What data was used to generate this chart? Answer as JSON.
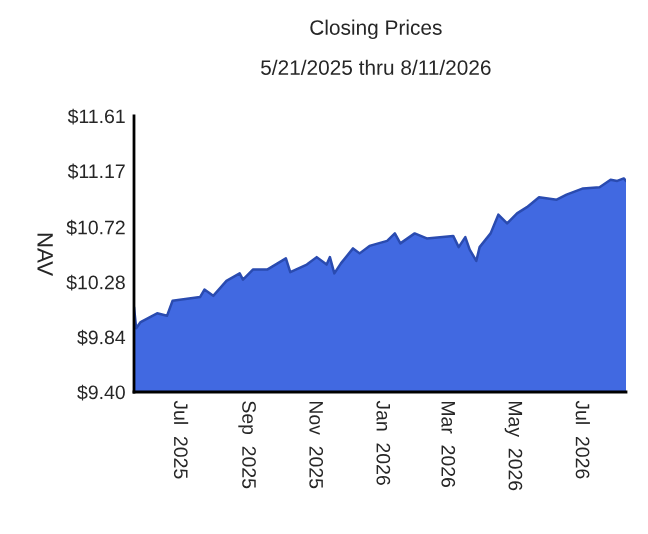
{
  "chart_data": {
    "type": "area",
    "title": "Closing Prices",
    "subtitle": "5/21/2025 thru 8/11/2026",
    "ylabel": "NAV",
    "x": [
      "2025-05-21",
      "2025-05-23",
      "2025-05-27",
      "2025-06-11",
      "2025-06-20",
      "2025-06-25",
      "2025-07-20",
      "2025-07-24",
      "2025-08-01",
      "2025-08-13",
      "2025-08-25",
      "2025-08-28",
      "2025-09-06",
      "2025-09-19",
      "2025-10-06",
      "2025-10-10",
      "2025-10-25",
      "2025-11-03",
      "2025-11-12",
      "2025-11-15",
      "2025-11-19",
      "2025-11-25",
      "2025-12-06",
      "2025-12-12",
      "2025-12-21",
      "2026-01-06",
      "2026-01-13",
      "2026-01-18",
      "2026-01-31",
      "2026-02-11",
      "2026-03-07",
      "2026-03-12",
      "2026-03-18",
      "2026-03-22",
      "2026-03-28",
      "2026-03-31",
      "2026-04-10",
      "2026-04-17",
      "2026-04-25",
      "2026-05-04",
      "2026-05-13",
      "2026-05-24",
      "2026-06-09",
      "2026-06-18",
      "2026-07-03",
      "2026-07-18",
      "2026-07-28",
      "2026-08-03",
      "2026-08-09",
      "2026-08-11"
    ],
    "series": [
      {
        "color": "#4169e1",
        "values": [
          10.08,
          9.91,
          9.96,
          10.03,
          10.01,
          10.13,
          10.16,
          10.22,
          10.17,
          10.29,
          10.35,
          10.3,
          10.38,
          10.38,
          10.47,
          10.36,
          10.42,
          10.48,
          10.42,
          10.48,
          10.35,
          10.43,
          10.55,
          10.51,
          10.57,
          10.61,
          10.67,
          10.59,
          10.67,
          10.63,
          10.65,
          10.56,
          10.64,
          10.54,
          10.45,
          10.56,
          10.67,
          10.82,
          10.75,
          10.83,
          10.88,
          10.96,
          10.94,
          10.98,
          11.03,
          11.04,
          11.1,
          11.09,
          11.11,
          11.09
        ]
      }
    ],
    "xlim": [
      "2025-05-21",
      "2026-08-11"
    ],
    "xticks": [
      {
        "value": "2025-07-01",
        "label": "Jul  2025"
      },
      {
        "value": "2025-09-01",
        "label": "Sep  2025"
      },
      {
        "value": "2025-11-01",
        "label": "Nov  2025"
      },
      {
        "value": "2026-01-01",
        "label": "Jan  2026"
      },
      {
        "value": "2026-03-01",
        "label": "Mar  2026"
      },
      {
        "value": "2026-05-01",
        "label": "May  2026"
      },
      {
        "value": "2026-07-01",
        "label": "Jul  2026"
      }
    ],
    "ylim": [
      9.4,
      11.61
    ],
    "yticks": [
      {
        "value": 9.4,
        "label": "$9.40"
      },
      {
        "value": 9.84,
        "label": "$9.84"
      },
      {
        "value": 10.28,
        "label": "$10.28"
      },
      {
        "value": 10.72,
        "label": "$10.72"
      },
      {
        "value": 11.17,
        "label": "$11.17"
      },
      {
        "value": 11.61,
        "label": "$11.61"
      }
    ],
    "grid": false,
    "legend": false
  }
}
